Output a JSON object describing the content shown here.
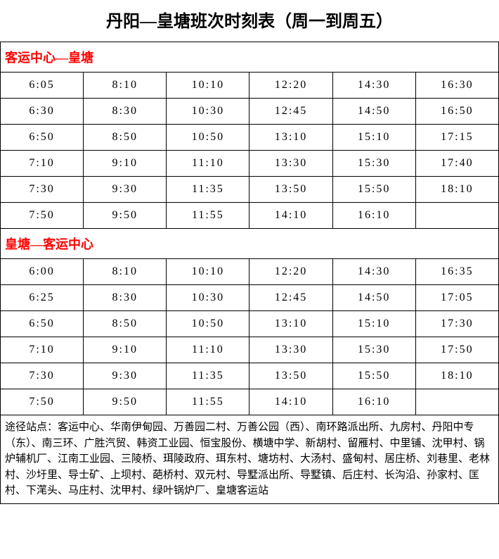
{
  "title": "丹阳—皇塘班次时刻表（周一到周五）",
  "section1": {
    "header": "客运中心—皇塘",
    "rows": [
      [
        "6:05",
        "8:10",
        "10:10",
        "12:20",
        "14:30",
        "16:30"
      ],
      [
        "6:30",
        "8:30",
        "10:30",
        "12:45",
        "14:50",
        "16:50"
      ],
      [
        "6:50",
        "8:50",
        "10:50",
        "13:10",
        "15:10",
        "17:15"
      ],
      [
        "7:10",
        "9:10",
        "11:10",
        "13:30",
        "15:30",
        "17:40"
      ],
      [
        "7:30",
        "9:30",
        "11:35",
        "13:50",
        "15:50",
        "18:10"
      ],
      [
        "7:50",
        "9:50",
        "11:55",
        "14:10",
        "16:10",
        ""
      ]
    ]
  },
  "section2": {
    "header": "皇塘—客运中心",
    "rows": [
      [
        "6:00",
        "8:10",
        "10:10",
        "12:20",
        "14:30",
        "16:35"
      ],
      [
        "6:25",
        "8:30",
        "10:30",
        "12:45",
        "14:50",
        "17:05"
      ],
      [
        "6:50",
        "8:50",
        "10:50",
        "13:10",
        "15:10",
        "17:30"
      ],
      [
        "7:10",
        "9:10",
        "11:10",
        "13:30",
        "15:30",
        "17:50"
      ],
      [
        "7:30",
        "9:30",
        "11:35",
        "13:50",
        "15:50",
        "18:10"
      ],
      [
        "7:50",
        "9:50",
        "11:55",
        "14:10",
        "16:10",
        ""
      ]
    ]
  },
  "footer": "途径站点：客运中心、华南伊甸园、万善园二村、万善公园（西）、南环路派出所、九房村、丹阳中专（东）、南三环、广胜汽贸、韩资工业园、恒宝股份、横塘中学、新胡村、留雁村、中里铺、沈甲村、锅炉辅机厂、江南工业园、三陵桥、珥陵政府、珥东村、塘坊村、大汤村、盛甸村、居庄桥、刘巷里、老林村、沙圩里、导士矿、上坝村、葩桥村、双元村、导墅派出所、导墅镇、后庄村、长沟沿、孙家村、匡村、下滗头、马庄村、沈甲村、绿叶锅炉厂、皇塘客运站",
  "colors": {
    "header_text": "#ff0000",
    "border": "#000000",
    "text": "#000000",
    "background": "#ffffff"
  }
}
